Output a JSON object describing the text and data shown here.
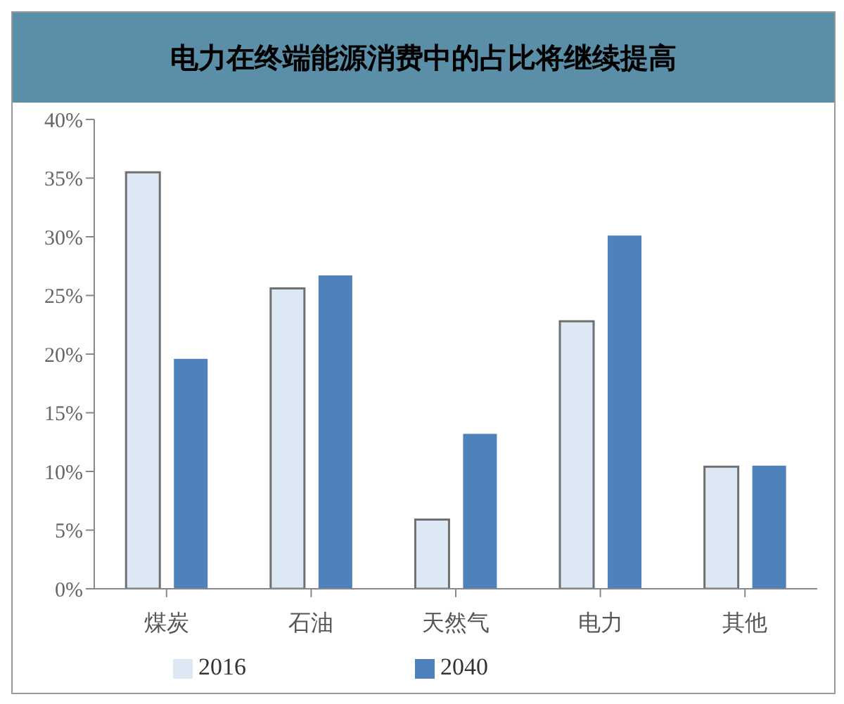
{
  "chart_data": {
    "type": "bar",
    "title": "电力在终端能源消费中的占比将继续提高",
    "categories": [
      "煤炭",
      "石油",
      "天然气",
      "电力",
      "其他"
    ],
    "series": [
      {
        "name": "2016",
        "color": "#dce9f5",
        "values": [
          35.5,
          25.6,
          5.9,
          22.8,
          10.4
        ]
      },
      {
        "name": "2040",
        "color": "#4f81bd",
        "values": [
          19.6,
          26.7,
          13.2,
          30.1,
          10.5
        ]
      }
    ],
    "ylim": [
      0,
      40
    ],
    "yticks": [
      {
        "value": 0,
        "label": "0%"
      },
      {
        "value": 5,
        "label": "5%"
      },
      {
        "value": 10,
        "label": "10%"
      },
      {
        "value": 15,
        "label": "15%"
      },
      {
        "value": 20,
        "label": "20%"
      },
      {
        "value": 25,
        "label": "25%"
      },
      {
        "value": 30,
        "label": "30%"
      },
      {
        "value": 35,
        "label": "35%"
      },
      {
        "value": 40,
        "label": "40%"
      }
    ],
    "grid": false,
    "legend": "bottom"
  }
}
